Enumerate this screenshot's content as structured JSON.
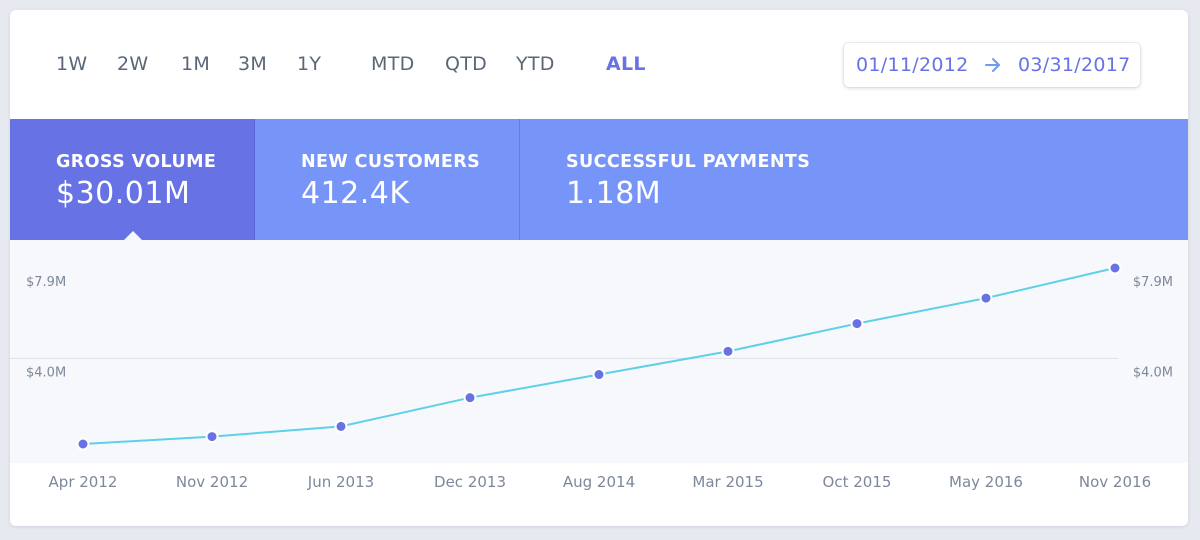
{
  "time_ranges": [
    {
      "label": "1W",
      "active": false
    },
    {
      "label": "2W",
      "active": false
    },
    {
      "label": "1M",
      "active": false
    },
    {
      "label": "3M",
      "active": false
    },
    {
      "label": "1Y",
      "active": false
    },
    {
      "label": "MTD",
      "active": false
    },
    {
      "label": "QTD",
      "active": false
    },
    {
      "label": "YTD",
      "active": false
    },
    {
      "label": "ALL",
      "active": true
    }
  ],
  "date_range": {
    "start": "01/11/2012",
    "end": "03/31/2017",
    "arrow_icon": "arrow-right-icon"
  },
  "metrics": [
    {
      "label": "GROSS VOLUME",
      "value": "$30.01M",
      "active": true
    },
    {
      "label": "NEW CUSTOMERS",
      "value": "412.4K",
      "active": false
    },
    {
      "label": "SUCCESSFUL PAYMENTS",
      "value": "1.18M",
      "active": false
    }
  ],
  "colors": {
    "accent": "#6772e5",
    "tab_inactive": "#7795f8",
    "line": "#5ed0e8",
    "point": "#6772e5",
    "text_muted": "#7d889b"
  },
  "chart_data": {
    "type": "line",
    "categories": [
      "Apr 2012",
      "Nov 2012",
      "Jun 2013",
      "Dec 2013",
      "Aug 2014",
      "Mar 2015",
      "Oct 2015",
      "May 2016",
      "Nov 2016"
    ],
    "values": [
      0.3,
      0.62,
      1.06,
      2.3,
      3.3,
      4.3,
      5.5,
      6.6,
      7.9
    ],
    "y_ticks": [
      {
        "value": 4.0,
        "label": "$4.0M"
      },
      {
        "value": 7.9,
        "label": "$7.9M"
      }
    ],
    "ylim": [
      -0.9,
      8.6
    ],
    "title": "",
    "xlabel": "",
    "ylabel": "",
    "grid": true
  }
}
